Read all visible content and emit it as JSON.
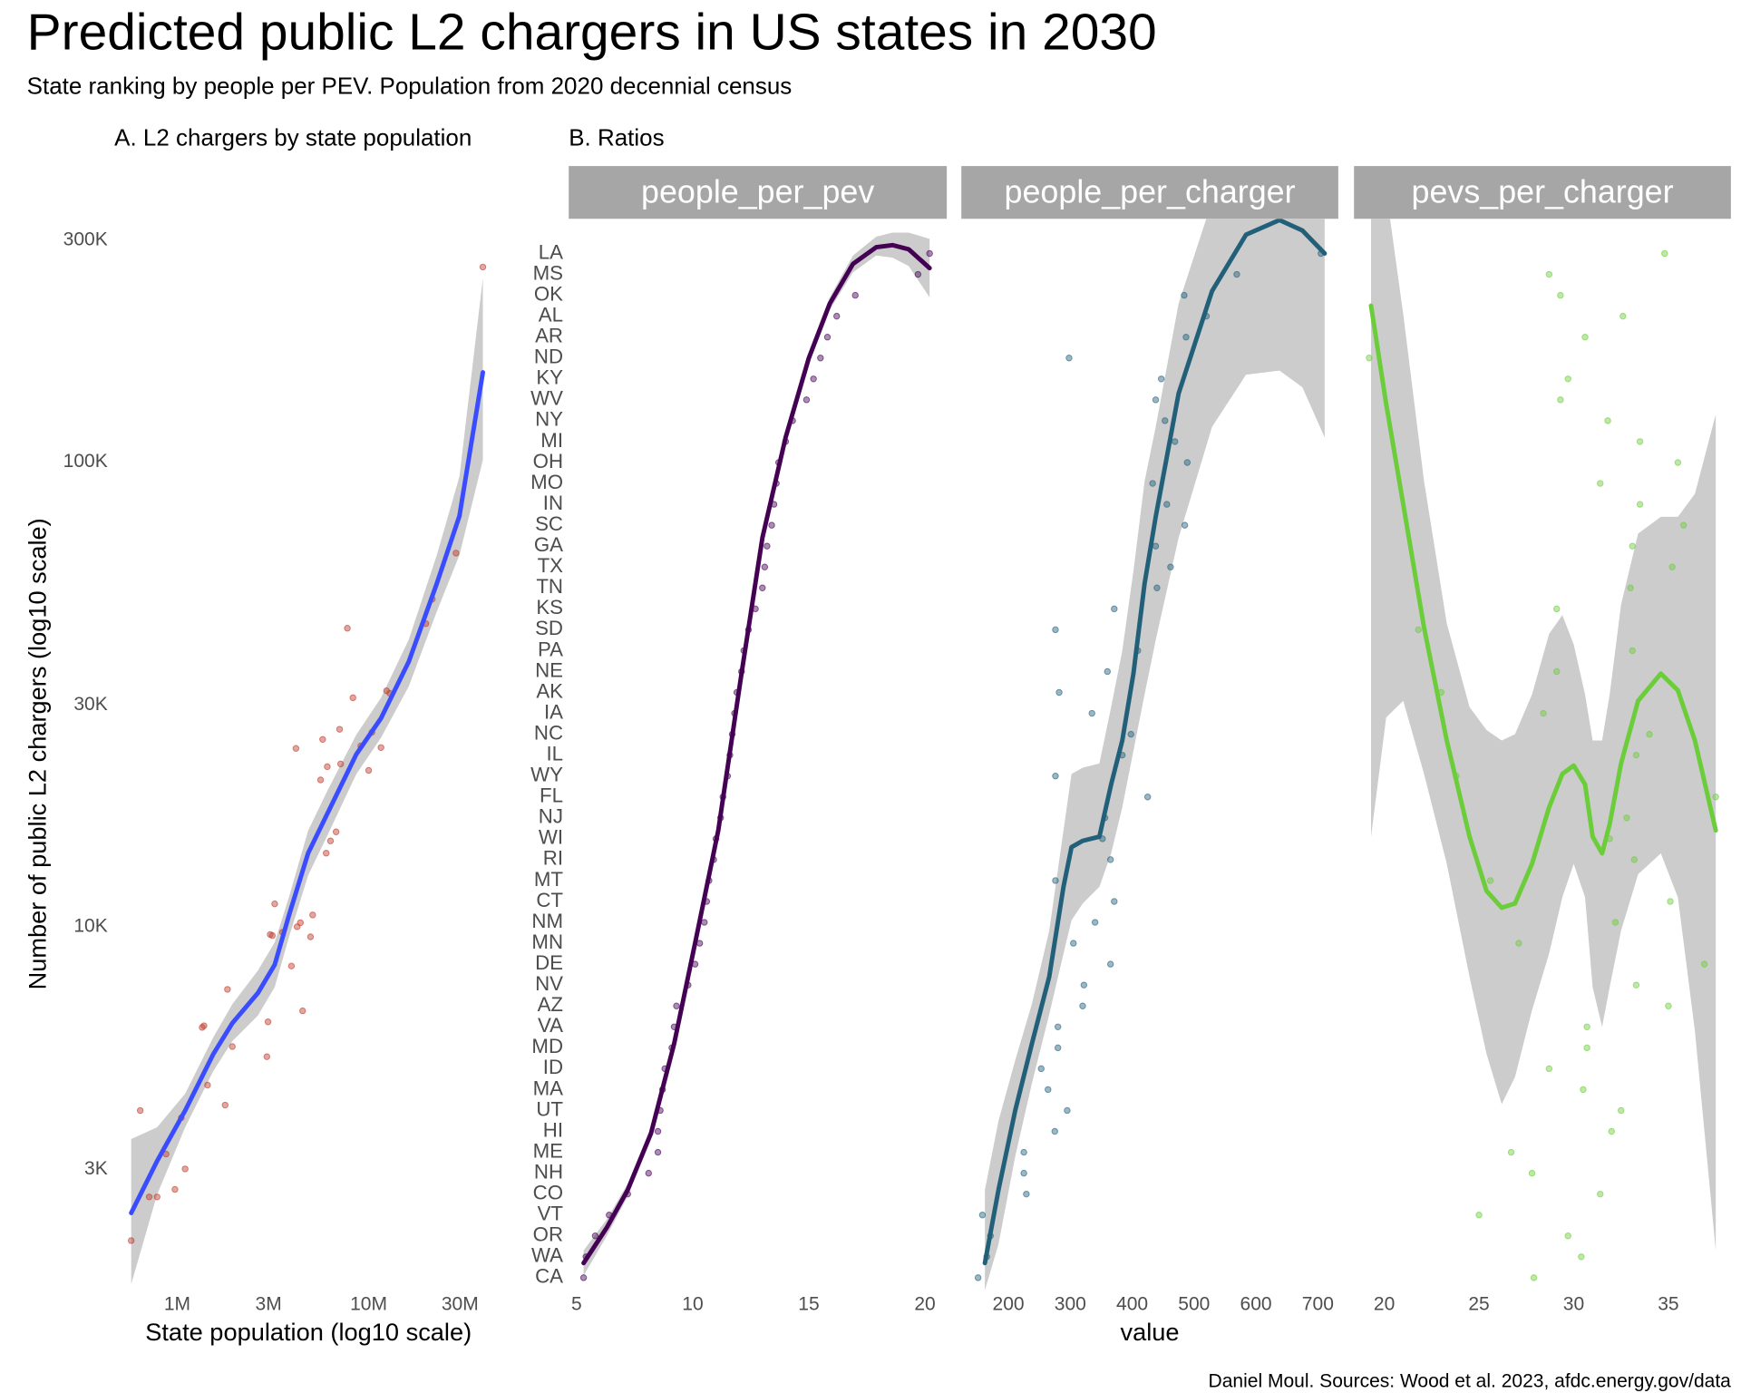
{
  "title": "Predicted public L2 chargers in US states in 2030",
  "subtitle": "State ranking by people per PEV. Population from 2020 decennial census",
  "caption": "Daniel Moul. Sources: Wood et al. 2023, afdc.energy.gov/data",
  "chart_data": [
    {
      "type": "scatter",
      "panel_title": "A. L2 chargers by state population",
      "x_label": "State population (log10 scale)",
      "y_label": "Number of public L2 chargers (log10 scale)",
      "log_x": true,
      "log_y": true,
      "grid": false,
      "xlim": [
        560000,
        42000000
      ],
      "ylim": [
        1650,
        334000
      ],
      "xticks": [
        {
          "value": 1000000,
          "label": "1M"
        },
        {
          "value": 3000000,
          "label": "3M"
        },
        {
          "value": 10000000,
          "label": "10M"
        },
        {
          "value": 30000000,
          "label": "30M"
        }
      ],
      "yticks": [
        {
          "value": 3000,
          "label": "3K"
        },
        {
          "value": 10000,
          "label": "10K"
        },
        {
          "value": 30000,
          "label": "30K"
        },
        {
          "value": 100000,
          "label": "100K"
        },
        {
          "value": 300000,
          "label": "300K"
        }
      ],
      "point_color": "#c0392b",
      "x": [
        575000,
        641000,
        714000,
        785000,
        875000,
        973000,
        1050000,
        1100000,
        1350000,
        1380000,
        1440000,
        1780000,
        1830000,
        1940000,
        2940000,
        2980000,
        3060000,
        3140000,
        3230000,
        3550000,
        3950000,
        4230000,
        4400000,
        4520000,
        4970000,
        5100000,
        4170000,
        5610000,
        5750000,
        6080000,
        6000000,
        6320000,
        6760000,
        7050000,
        7140000,
        7740000,
        8280000,
        9100000,
        10000000,
        10400000,
        11600000,
        12400000,
        12900000,
        19900000,
        21500000,
        28600000,
        39500000
      ],
      "y": [
        2110,
        4020,
        2620,
        2620,
        3240,
        2720,
        3880,
        3010,
        6070,
        6120,
        4560,
        4130,
        7330,
        5520,
        5250,
        6240,
        9620,
        9570,
        11200,
        9730,
        8230,
        10000,
        10200,
        6590,
        9510,
        10600,
        24200,
        20700,
        25300,
        22100,
        14400,
        15300,
        16000,
        26600,
        22400,
        43900,
        31100,
        24500,
        21700,
        26200,
        24300,
        32200,
        31800,
        44900,
        50700,
        63700,
        263000
      ],
      "smooth": {
        "color": "#3a4cff",
        "band_color": "#cccccc",
        "x": [
          575000,
          785000,
          1100000,
          1540000,
          1940000,
          2640000,
          3230000,
          3840000,
          4830000,
          6080000,
          8620000,
          11600000,
          16200000,
          22700000,
          29800000,
          39500000
        ],
        "y": [
          2420,
          3130,
          4020,
          5310,
          6200,
          7200,
          8280,
          10600,
          14400,
          17500,
          23500,
          28100,
          37200,
          54800,
          76600,
          156000
        ],
        "lower": [
          1700,
          2650,
          3700,
          4880,
          5670,
          6440,
          7410,
          9510,
          12900,
          15700,
          21300,
          25500,
          32900,
          47700,
          63100,
          101000
        ],
        "upper": [
          3490,
          3700,
          4370,
          5770,
          6810,
          8050,
          9250,
          11600,
          16100,
          19600,
          25900,
          31100,
          41500,
          63100,
          93100,
          249000
        ]
      }
    },
    {
      "type": "dot",
      "panel_title": "B. Ratios",
      "x_label": "value",
      "categories": [
        "LA",
        "MS",
        "OK",
        "AL",
        "AR",
        "ND",
        "KY",
        "WV",
        "NY",
        "MI",
        "OH",
        "MO",
        "IN",
        "SC",
        "GA",
        "TX",
        "TN",
        "KS",
        "SD",
        "PA",
        "NE",
        "AK",
        "IA",
        "NC",
        "IL",
        "WY",
        "FL",
        "NJ",
        "WI",
        "RI",
        "MT",
        "CT",
        "NM",
        "MN",
        "DE",
        "NV",
        "AZ",
        "VA",
        "MD",
        "ID",
        "MA",
        "UT",
        "HI",
        "ME",
        "NH",
        "CO",
        "VT",
        "OR",
        "WA",
        "CA"
      ],
      "ylim": [
        0.4,
        51.66
      ],
      "strip_color": "#a6a6a6",
      "band_color": "#cccccc",
      "facets": [
        {
          "name": "people_per_pev",
          "color": "#440154",
          "xlim": [
            4.66,
            20.94
          ],
          "xticks": [
            5,
            10,
            15,
            20
          ],
          "values": [
            20.2,
            19.7,
            17.0,
            16.2,
            15.8,
            15.5,
            15.2,
            14.9,
            14.3,
            14.0,
            13.7,
            13.6,
            13.5,
            13.4,
            13.2,
            13.1,
            13.0,
            12.7,
            12.4,
            12.2,
            12.1,
            11.9,
            11.8,
            11.7,
            11.6,
            11.5,
            11.3,
            11.2,
            11.0,
            10.9,
            10.7,
            10.6,
            10.5,
            10.3,
            10.1,
            9.8,
            9.3,
            9.2,
            9.1,
            8.8,
            8.7,
            8.6,
            8.5,
            8.5,
            8.1,
            7.2,
            6.4,
            5.8,
            5.4,
            5.3
          ],
          "smooth": {
            "x": [
              5.3,
              6.3,
              7.2,
              8.2,
              9.2,
              10.1,
              11.1,
              12.1,
              13.0,
              14.0,
              15.0,
              15.9,
              16.9,
              17.9,
              18.6,
              19.3,
              20.2
            ],
            "y": [
              1.7,
              3.4,
              5.2,
              7.9,
              12.2,
              17.0,
              22.4,
              29.9,
              36.4,
              41.2,
              45.0,
              47.6,
              49.5,
              50.3,
              50.4,
              50.2,
              49.3
            ],
            "lower": [
              1.1,
              3.0,
              4.9,
              7.7,
              12.0,
              16.8,
              22.2,
              29.7,
              36.1,
              41.0,
              44.7,
              47.3,
              49.1,
              49.9,
              49.8,
              49.4,
              47.9
            ],
            "upper": [
              2.3,
              3.8,
              5.5,
              8.2,
              12.5,
              17.3,
              22.7,
              30.2,
              36.6,
              41.5,
              45.2,
              47.9,
              49.9,
              50.8,
              51.0,
              51.0,
              50.7
            ]
          }
        },
        {
          "name": "people_per_charger",
          "color": "#22607a",
          "xlim": [
            124,
            733
          ],
          "xticks": [
            200,
            300,
            400,
            500,
            600,
            700
          ],
          "values": [
            705,
            569,
            484,
            520,
            487,
            298,
            447,
            438,
            453,
            469,
            489,
            433,
            456,
            485,
            438,
            462,
            440,
            371,
            276,
            409,
            360,
            282,
            335,
            398,
            384,
            276,
            425,
            356,
            352,
            365,
            276,
            371,
            340,
            305,
            365,
            322,
            320,
            280,
            280,
            253,
            264,
            295,
            275,
            225,
            225,
            229,
            158,
            171,
            165,
            151
          ],
          "smooth": {
            "x": [
              162,
              184,
              211,
              238,
              266,
              289,
              302,
              320,
              347,
              366,
              384,
              402,
              420,
              438,
              475,
              529,
              584,
              638,
              675,
              711
            ],
            "y": [
              1.7,
              5.2,
              9.0,
              12.2,
              15.4,
              19.7,
              21.6,
              21.9,
              22.1,
              24.6,
              26.7,
              29.9,
              34.2,
              37.4,
              43.3,
              48.2,
              50.9,
              51.6,
              51.1,
              50.0
            ],
            "lower": [
              0.4,
              2.6,
              6.8,
              10.3,
              13.6,
              16.5,
              18.1,
              18.9,
              19.7,
              21.3,
              23.5,
              26.2,
              28.9,
              31.5,
              36.4,
              41.7,
              44.2,
              44.4,
              43.6,
              41.2
            ],
            "upper": [
              5.2,
              8.5,
              11.4,
              14.1,
              17.6,
              22.4,
              25.1,
              25.4,
              25.6,
              28.3,
              31.0,
              34.8,
              39.1,
              41.7,
              47.6,
              52.5,
              54.0,
              55.0,
              55.0,
              54.0
            ]
          }
        },
        {
          "name": "pevs_per_charger",
          "color": "#6ccd3a",
          "xlim": [
            18.4,
            38.3
          ],
          "xticks": [
            20,
            25,
            30,
            35
          ],
          "values": [
            34.8,
            28.7,
            29.3,
            32.6,
            30.6,
            19.2,
            29.7,
            29.3,
            31.8,
            33.5,
            35.5,
            31.4,
            33.5,
            35.8,
            33.1,
            35.2,
            33.0,
            29.1,
            21.8,
            33.1,
            29.1,
            23.0,
            28.4,
            34.0,
            33.3,
            23.8,
            37.5,
            32.8,
            31.9,
            33.2,
            25.6,
            35.1,
            32.2,
            27.1,
            36.9,
            33.3,
            35.0,
            30.7,
            30.7,
            28.7,
            30.5,
            32.5,
            32.0,
            26.7,
            27.8,
            31.4,
            25.0,
            29.7,
            30.4,
            27.9
          ],
          "smooth": {
            "x": [
              19.3,
              20.1,
              21.0,
              22.1,
              23.3,
              24.5,
              25.4,
              26.2,
              26.9,
              27.8,
              28.7,
              29.4,
              30.0,
              30.6,
              31.0,
              31.5,
              31.9,
              32.5,
              33.4,
              34.6,
              35.5,
              36.4,
              37.5
            ],
            "y": [
              47.5,
              42.8,
              38.0,
              32.1,
              26.7,
              22.1,
              19.5,
              18.7,
              18.9,
              20.8,
              23.5,
              25.1,
              25.5,
              24.6,
              22.1,
              21.3,
              22.7,
              25.6,
              28.6,
              29.9,
              29.1,
              26.7,
              22.4
            ],
            "lower": [
              22.1,
              27.8,
              28.6,
              25.1,
              20.8,
              15.4,
              11.7,
              9.3,
              10.6,
              13.8,
              16.5,
              19.2,
              20.8,
              19.2,
              14.9,
              13.0,
              14.9,
              17.6,
              20.3,
              21.3,
              19.2,
              12.8,
              2.3
            ],
            "upper": [
              54.0,
              53.0,
              47.1,
              39.1,
              32.3,
              28.3,
              27.2,
              26.7,
              27.0,
              28.9,
              31.8,
              32.7,
              31.3,
              28.9,
              26.7,
              26.7,
              28.9,
              33.2,
              36.6,
              37.4,
              37.4,
              38.5,
              42.3
            ]
          }
        }
      ]
    }
  ]
}
